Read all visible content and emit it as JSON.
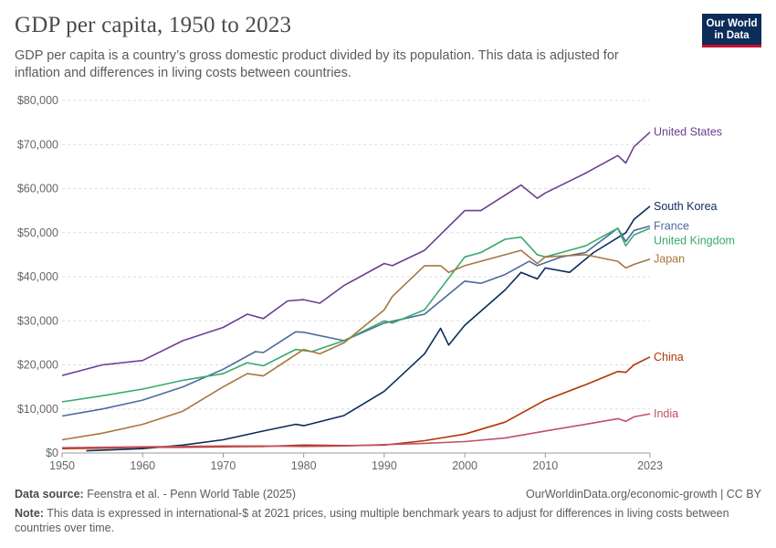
{
  "header": {
    "title": "GDP per capita, 1950 to 2023",
    "subtitle": "GDP per capita is a country’s gross domestic product divided by its population. This data is adjusted for inflation and differences in living costs between countries.",
    "logo_line1": "Our World",
    "logo_line2": "in Data"
  },
  "footer": {
    "source_label": "Data source:",
    "source_text": "Feenstra et al. - Penn World Table (2025)",
    "url": "OurWorldinData.org/economic-growth | CC BY",
    "note_label": "Note:",
    "note_text": "This data is expressed in international-$ at 2021 prices, using multiple benchmark years to adjust for differences in living costs between countries over time."
  },
  "chart_data": {
    "type": "line",
    "title": "GDP per capita, 1950 to 2023",
    "xlim": [
      1950,
      2023
    ],
    "ylim": [
      0,
      80000
    ],
    "x_ticks": [
      1950,
      1960,
      1970,
      1980,
      1990,
      2000,
      2010,
      2023
    ],
    "y_ticks": [
      0,
      10000,
      20000,
      30000,
      40000,
      50000,
      60000,
      70000,
      80000
    ],
    "y_tick_labels": [
      "$0",
      "$10,000",
      "$20,000",
      "$30,000",
      "$40,000",
      "$50,000",
      "$60,000",
      "$70,000",
      "$80,000"
    ],
    "grid": "horizontal dashed",
    "legend": "line-end labels",
    "series": [
      {
        "name": "United States",
        "color": "#6d3e91",
        "points": [
          [
            1950,
            17600
          ],
          [
            1955,
            20000
          ],
          [
            1960,
            21000
          ],
          [
            1965,
            25500
          ],
          [
            1970,
            28500
          ],
          [
            1973,
            31500
          ],
          [
            1975,
            30500
          ],
          [
            1978,
            34500
          ],
          [
            1980,
            34800
          ],
          [
            1982,
            34000
          ],
          [
            1985,
            38000
          ],
          [
            1990,
            43000
          ],
          [
            1991,
            42500
          ],
          [
            1995,
            46000
          ],
          [
            2000,
            55000
          ],
          [
            2002,
            55000
          ],
          [
            2005,
            58500
          ],
          [
            2007,
            60800
          ],
          [
            2009,
            57800
          ],
          [
            2010,
            59000
          ],
          [
            2015,
            63500
          ],
          [
            2019,
            67500
          ],
          [
            2020,
            65800
          ],
          [
            2021,
            69500
          ],
          [
            2023,
            72800
          ]
        ]
      },
      {
        "name": "South Korea",
        "color": "#0c2c5a",
        "points": [
          [
            1953,
            500
          ],
          [
            1960,
            1000
          ],
          [
            1965,
            1800
          ],
          [
            1970,
            3000
          ],
          [
            1975,
            5000
          ],
          [
            1979,
            6500
          ],
          [
            1980,
            6200
          ],
          [
            1985,
            8500
          ],
          [
            1990,
            14000
          ],
          [
            1995,
            22500
          ],
          [
            1997,
            28300
          ],
          [
            1998,
            24500
          ],
          [
            2000,
            29000
          ],
          [
            2005,
            37000
          ],
          [
            2007,
            41000
          ],
          [
            2009,
            39500
          ],
          [
            2010,
            42000
          ],
          [
            2013,
            41000
          ],
          [
            2016,
            45500
          ],
          [
            2020,
            50000
          ],
          [
            2021,
            53000
          ],
          [
            2023,
            56000
          ]
        ]
      },
      {
        "name": "France",
        "color": "#4c6a9c",
        "points": [
          [
            1950,
            8400
          ],
          [
            1955,
            10000
          ],
          [
            1960,
            12000
          ],
          [
            1965,
            15000
          ],
          [
            1970,
            19000
          ],
          [
            1974,
            23000
          ],
          [
            1975,
            22800
          ],
          [
            1979,
            27500
          ],
          [
            1980,
            27400
          ],
          [
            1985,
            25500
          ],
          [
            1990,
            29500
          ],
          [
            1995,
            31500
          ],
          [
            2000,
            39000
          ],
          [
            2002,
            38500
          ],
          [
            2005,
            40500
          ],
          [
            2008,
            43500
          ],
          [
            2009,
            42500
          ],
          [
            2012,
            44500
          ],
          [
            2015,
            45500
          ],
          [
            2019,
            51000
          ],
          [
            2020,
            48000
          ],
          [
            2021,
            50500
          ],
          [
            2023,
            51500
          ]
        ]
      },
      {
        "name": "United Kingdom",
        "color": "#38aa6d",
        "points": [
          [
            1950,
            11600
          ],
          [
            1955,
            13000
          ],
          [
            1960,
            14500
          ],
          [
            1965,
            16500
          ],
          [
            1970,
            18000
          ],
          [
            1973,
            20500
          ],
          [
            1975,
            19800
          ],
          [
            1979,
            23500
          ],
          [
            1981,
            23000
          ],
          [
            1985,
            25500
          ],
          [
            1990,
            30000
          ],
          [
            1991,
            29500
          ],
          [
            1995,
            32500
          ],
          [
            2000,
            44500
          ],
          [
            2002,
            45500
          ],
          [
            2005,
            48500
          ],
          [
            2007,
            49000
          ],
          [
            2009,
            45000
          ],
          [
            2010,
            44500
          ],
          [
            2015,
            47000
          ],
          [
            2019,
            51000
          ],
          [
            2020,
            47000
          ],
          [
            2021,
            49500
          ],
          [
            2023,
            51000
          ]
        ]
      },
      {
        "name": "Japan",
        "color": "#a5773f",
        "points": [
          [
            1950,
            3000
          ],
          [
            1955,
            4500
          ],
          [
            1960,
            6500
          ],
          [
            1965,
            9500
          ],
          [
            1970,
            15000
          ],
          [
            1973,
            18000
          ],
          [
            1975,
            17500
          ],
          [
            1980,
            23500
          ],
          [
            1982,
            22500
          ],
          [
            1985,
            25000
          ],
          [
            1990,
            32500
          ],
          [
            1991,
            35500
          ],
          [
            1995,
            42500
          ],
          [
            1997,
            42500
          ],
          [
            1998,
            41000
          ],
          [
            2000,
            42500
          ],
          [
            2005,
            45000
          ],
          [
            2007,
            46000
          ],
          [
            2009,
            43000
          ],
          [
            2010,
            44500
          ],
          [
            2015,
            45000
          ],
          [
            2019,
            43500
          ],
          [
            2020,
            42000
          ],
          [
            2021,
            42800
          ],
          [
            2023,
            44000
          ]
        ]
      },
      {
        "name": "China",
        "color": "#b13507",
        "points": [
          [
            1950,
            1000
          ],
          [
            1955,
            1100
          ],
          [
            1960,
            1300
          ],
          [
            1965,
            1300
          ],
          [
            1970,
            1400
          ],
          [
            1975,
            1500
          ],
          [
            1980,
            1800
          ],
          [
            1985,
            1700
          ],
          [
            1990,
            1800
          ],
          [
            1995,
            2800
          ],
          [
            2000,
            4300
          ],
          [
            2005,
            7000
          ],
          [
            2010,
            12000
          ],
          [
            2015,
            15500
          ],
          [
            2019,
            18500
          ],
          [
            2020,
            18300
          ],
          [
            2021,
            20000
          ],
          [
            2023,
            21800
          ]
        ]
      },
      {
        "name": "India",
        "color": "#c15065",
        "points": [
          [
            1950,
            1200
          ],
          [
            1955,
            1300
          ],
          [
            1960,
            1400
          ],
          [
            1965,
            1500
          ],
          [
            1970,
            1600
          ],
          [
            1975,
            1600
          ],
          [
            1980,
            1500
          ],
          [
            1985,
            1600
          ],
          [
            1990,
            1900
          ],
          [
            1995,
            2200
          ],
          [
            2000,
            2600
          ],
          [
            2005,
            3400
          ],
          [
            2010,
            5000
          ],
          [
            2015,
            6500
          ],
          [
            2019,
            7800
          ],
          [
            2020,
            7200
          ],
          [
            2021,
            8200
          ],
          [
            2023,
            8900
          ]
        ]
      }
    ]
  }
}
